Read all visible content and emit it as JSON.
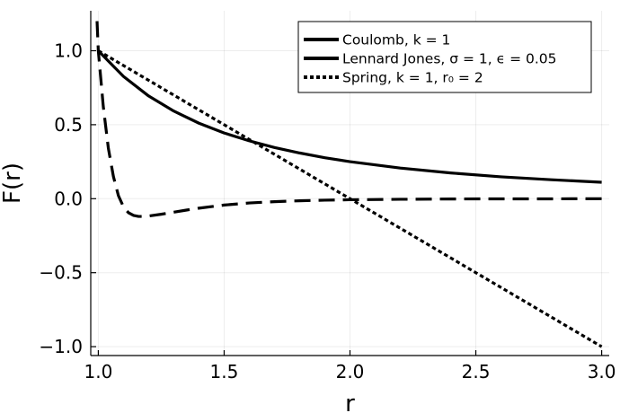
{
  "chart_data": {
    "type": "line",
    "xlabel": "r",
    "ylabel": "F(r)",
    "xlim": [
      0.97,
      3.03
    ],
    "ylim": [
      -1.06,
      1.27
    ],
    "xticks": [
      1.0,
      1.5,
      2.0,
      2.5,
      3.0
    ],
    "xtick_labels": [
      "1.0",
      "1.5",
      "2.0",
      "2.5",
      "3.0"
    ],
    "yticks": [
      -1.0,
      -0.5,
      0.0,
      0.5,
      1.0
    ],
    "ytick_labels": [
      "−1.0",
      "−0.5",
      "0.0",
      "0.5",
      "1.0"
    ],
    "grid": true,
    "legend_position": "top-right",
    "series": [
      {
        "name": "Coulomb, k = 1",
        "style": "solid",
        "color": "#000000",
        "x": [
          1.0,
          1.1,
          1.2,
          1.3,
          1.4,
          1.5,
          1.6,
          1.7,
          1.8,
          1.9,
          2.0,
          2.2,
          2.4,
          2.6,
          2.8,
          3.0
        ],
        "y": [
          1.0,
          0.826,
          0.694,
          0.592,
          0.51,
          0.444,
          0.391,
          0.346,
          0.309,
          0.277,
          0.25,
          0.207,
          0.174,
          0.148,
          0.128,
          0.111
        ]
      },
      {
        "name": "Lennard Jones, σ = 1, ϵ = 0.05",
        "style": "dash",
        "color": "#000000",
        "x": [
          0.995,
          1.0,
          1.02,
          1.04,
          1.06,
          1.08,
          1.1,
          1.12,
          1.14,
          1.16,
          1.18,
          1.2,
          1.25,
          1.3,
          1.35,
          1.4,
          1.5,
          1.6,
          1.7,
          1.8,
          1.9,
          2.0,
          2.2,
          2.4,
          2.6,
          2.8,
          3.0
        ],
        "y": [
          1.2,
          1.0,
          0.62,
          0.34,
          0.15,
          0.02,
          -0.055,
          -0.095,
          -0.113,
          -0.12,
          -0.12,
          -0.117,
          -0.105,
          -0.091,
          -0.077,
          -0.064,
          -0.043,
          -0.029,
          -0.02,
          -0.014,
          -0.01,
          -0.007,
          -0.004,
          -0.002,
          -0.001,
          -0.001,
          0.0
        ]
      },
      {
        "name": "Spring, k = 1, r₀ = 2",
        "style": "dot",
        "color": "#000000",
        "x": [
          1.0,
          1.5,
          2.0,
          2.5,
          3.0
        ],
        "y": [
          1.0,
          0.5,
          0.0,
          -0.5,
          -1.0
        ]
      }
    ]
  }
}
